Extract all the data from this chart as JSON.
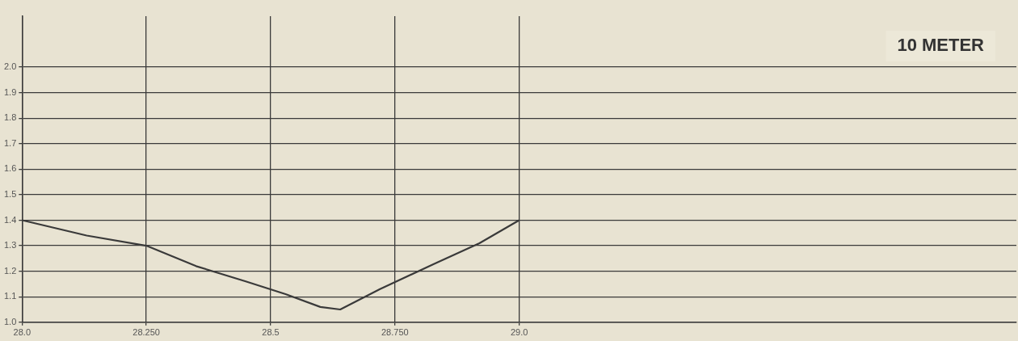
{
  "chart_data": {
    "type": "line",
    "annotations": [
      "10 METER"
    ],
    "x": [
      28.0,
      28.13,
      28.25,
      28.35,
      28.45,
      28.53,
      28.6,
      28.64,
      28.72,
      28.83,
      28.92,
      29.0
    ],
    "series": [
      {
        "color": "#3a3a3a",
        "values": [
          1.4,
          1.34,
          1.3,
          1.22,
          1.16,
          1.11,
          1.06,
          1.05,
          1.13,
          1.23,
          1.31,
          1.4
        ]
      }
    ],
    "xlim": [
      28.0,
      30.0
    ],
    "ylim": [
      1.0,
      2.2
    ],
    "xticks": [
      {
        "value": 28.0,
        "label": "28.0"
      },
      {
        "value": 28.25,
        "label": "28.250"
      },
      {
        "value": 28.5,
        "label": "28.5"
      },
      {
        "value": 28.75,
        "label": "28.750"
      },
      {
        "value": 29.0,
        "label": "29.0"
      }
    ],
    "yticks": [
      {
        "value": 1.0,
        "label": "1.0"
      },
      1.1,
      1.2,
      1.3,
      1.4,
      1.5,
      1.6,
      1.7,
      1.8,
      1.9,
      {
        "value": 2.0,
        "label": "2.0"
      }
    ],
    "grid": true,
    "legend": false,
    "marker": "none",
    "line_style": "solid"
  }
}
